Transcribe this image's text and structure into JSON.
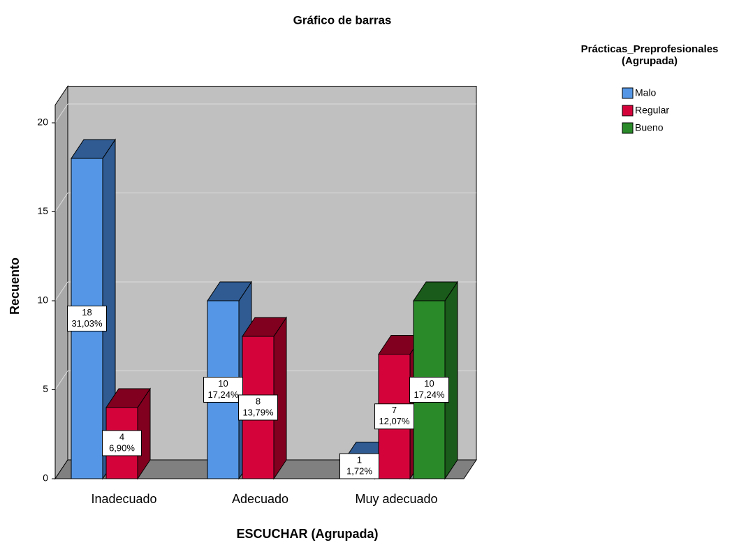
{
  "chart_data": {
    "type": "bar3d",
    "title": "Gráfico de barras",
    "x_label": "ESCUCHAR (Agrupada)",
    "y_label": "Recuento",
    "legend_title": "Prácticas_Preprofesionales\n(Agrupada)",
    "legend_position": "top-right",
    "categories": [
      "Inadecuado",
      "Adecuado",
      "Muy adecuado"
    ],
    "series": [
      {
        "name": "Malo",
        "color": "#5597e6",
        "side_color": "#2f5b92",
        "values": [
          18,
          10,
          1
        ],
        "percents": [
          31.03,
          17.24,
          1.72
        ],
        "percent_labels": [
          "31,03%",
          "17,24%",
          "1,72%"
        ]
      },
      {
        "name": "Regular",
        "color": "#d4043b",
        "side_color": "#82001f",
        "values": [
          4,
          8,
          7
        ],
        "percents": [
          6.9,
          13.79,
          12.07
        ],
        "percent_labels": [
          "6,90%",
          "13,79%",
          "12,07%"
        ]
      },
      {
        "name": "Bueno",
        "color": "#2a8a2a",
        "side_color": "#1a5a1a",
        "values": [
          null,
          null,
          10
        ],
        "percents": [
          null,
          null,
          17.24
        ],
        "percent_labels": [
          null,
          null,
          "17,24%"
        ]
      }
    ],
    "ylim": [
      0,
      21
    ],
    "yticks": [
      0,
      5,
      10,
      15,
      20
    ],
    "grid": true
  }
}
